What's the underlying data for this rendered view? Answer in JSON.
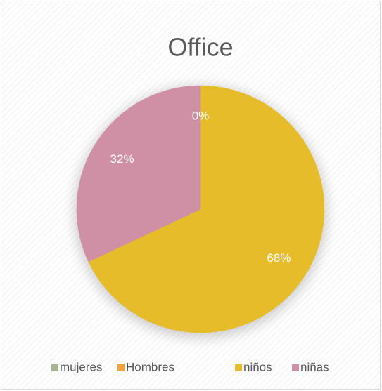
{
  "chart_data": {
    "type": "pie",
    "title": "Office",
    "categories": [
      "mujeres",
      "Hombres",
      "niños",
      "niñas"
    ],
    "values": [
      0,
      0,
      68,
      32
    ],
    "value_labels": [
      "0%",
      null,
      "68%",
      "32%"
    ],
    "colors": [
      "#a5b592",
      "#f4a23a",
      "#e6bc2a",
      "#cf8fa5"
    ],
    "legend": "bottom"
  }
}
